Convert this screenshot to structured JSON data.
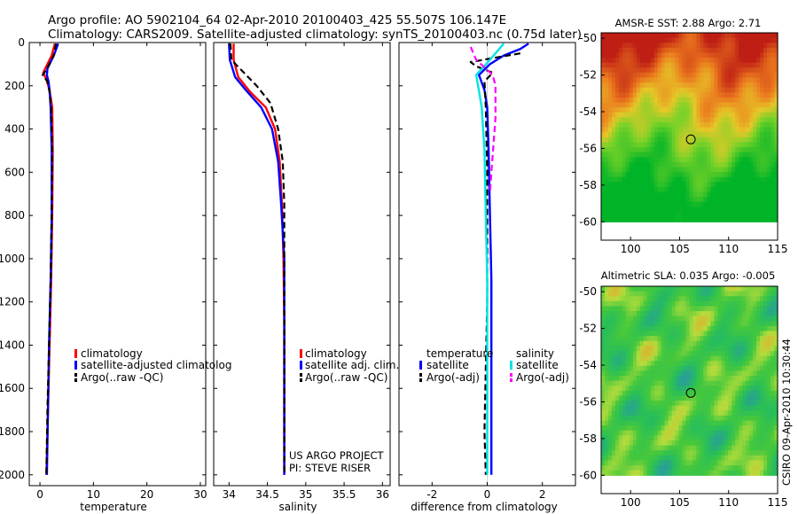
{
  "header": {
    "title_line1": "Argo profile: AO 5902104_64 02-Apr-2010 20100403_425 55.507S 106.147E",
    "title_line2": "Climatology: CARS2009. Satellite-adjusted climatology: synTS_20100403.nc (0.75d later)"
  },
  "credit": {
    "project": "US ARGO PROJECT",
    "pi": "PI: STEVE RISER",
    "stamp": "CSIRO 09-Apr-2010 10:30:44"
  },
  "colors": {
    "climatology": "#ff0000",
    "satellite": "#0000ff",
    "argo": "#000000",
    "sat_cyan": "#00e5e5",
    "argo_magenta": "#ff00ff"
  },
  "chart_data": [
    {
      "type": "line",
      "id": "temperature",
      "xlabel": "temperature",
      "ylabel": "",
      "xlim": [
        -2,
        31
      ],
      "ylim": [
        2050,
        0
      ],
      "xticks": [
        "0",
        "10",
        "20",
        "30"
      ],
      "xtick_values": [
        0,
        10,
        20,
        30
      ],
      "yticks": [
        "0",
        "200",
        "400",
        "600",
        "800",
        "1000",
        "1200",
        "1400",
        "1600",
        "1800",
        "2000"
      ],
      "ytick_values": [
        0,
        200,
        400,
        600,
        800,
        1000,
        1200,
        1400,
        1600,
        1800,
        2000
      ],
      "legend": [
        "climatology",
        "satellite-adjusted climatolog",
        "Argo(..raw -QC)"
      ],
      "series": [
        {
          "name": "climatology",
          "color": "#ff0000",
          "dash": false,
          "points": [
            [
              2.8,
              5
            ],
            [
              2.2,
              60
            ],
            [
              1.2,
              110
            ],
            [
              0.6,
              140
            ],
            [
              1.2,
              170
            ],
            [
              1.8,
              220
            ],
            [
              2.3,
              300
            ],
            [
              2.4,
              500
            ],
            [
              2.3,
              800
            ],
            [
              2.1,
              1100
            ],
            [
              1.8,
              1400
            ],
            [
              1.5,
              1700
            ],
            [
              1.2,
              2000
            ]
          ]
        },
        {
          "name": "satellite-adjusted climatolog",
          "color": "#0000ff",
          "dash": false,
          "points": [
            [
              3.4,
              5
            ],
            [
              2.6,
              60
            ],
            [
              1.4,
              120
            ],
            [
              1.3,
              150
            ],
            [
              1.6,
              180
            ],
            [
              1.8,
              220
            ],
            [
              2.0,
              300
            ],
            [
              2.2,
              500
            ],
            [
              2.2,
              800
            ],
            [
              2.0,
              1100
            ],
            [
              1.7,
              1400
            ],
            [
              1.5,
              1700
            ],
            [
              1.3,
              2000
            ]
          ]
        },
        {
          "name": "Argo(..raw -QC)",
          "color": "#000000",
          "dash": true,
          "points": [
            [
              3.0,
              5
            ],
            [
              2.6,
              60
            ],
            [
              1.1,
              130
            ],
            [
              0.5,
              150
            ],
            [
              1.4,
              180
            ],
            [
              1.8,
              230
            ],
            [
              2.1,
              300
            ],
            [
              2.3,
              500
            ],
            [
              2.2,
              800
            ],
            [
              2.0,
              1100
            ],
            [
              1.7,
              1400
            ],
            [
              1.4,
              1700
            ],
            [
              1.2,
              2000
            ]
          ]
        }
      ]
    },
    {
      "type": "line",
      "id": "salinity",
      "xlabel": "salinity",
      "ylabel": "",
      "xlim": [
        33.8,
        36.1
      ],
      "ylim": [
        2050,
        0
      ],
      "xticks": [
        "34",
        "34.5",
        "35",
        "35.5",
        "36"
      ],
      "xtick_values": [
        34,
        34.5,
        35,
        35.5,
        36
      ],
      "legend": [
        "climatology",
        "satellite adj. clim.",
        "Argo(..raw -QC)"
      ],
      "series": [
        {
          "name": "climatology",
          "color": "#ff0000",
          "dash": false,
          "points": [
            [
              34.06,
              5
            ],
            [
              34.06,
              80
            ],
            [
              34.12,
              160
            ],
            [
              34.28,
              230
            ],
            [
              34.48,
              300
            ],
            [
              34.6,
              400
            ],
            [
              34.66,
              550
            ],
            [
              34.69,
              750
            ],
            [
              34.71,
              1000
            ],
            [
              34.72,
              1300
            ],
            [
              34.72,
              1600
            ],
            [
              34.72,
              2000
            ]
          ]
        },
        {
          "name": "satellite adj. clim.",
          "color": "#0000ff",
          "dash": false,
          "points": [
            [
              34.0,
              5
            ],
            [
              34.01,
              80
            ],
            [
              34.08,
              160
            ],
            [
              34.22,
              220
            ],
            [
              34.42,
              300
            ],
            [
              34.56,
              400
            ],
            [
              34.64,
              550
            ],
            [
              34.68,
              750
            ],
            [
              34.72,
              1000
            ],
            [
              34.72,
              1300
            ],
            [
              34.72,
              1600
            ],
            [
              34.72,
              2000
            ]
          ]
        },
        {
          "name": "Argo(..raw -QC)",
          "color": "#000000",
          "dash": true,
          "points": [
            [
              34.02,
              5
            ],
            [
              34.03,
              80
            ],
            [
              34.14,
              120
            ],
            [
              34.36,
              200
            ],
            [
              34.54,
              280
            ],
            [
              34.64,
              400
            ],
            [
              34.7,
              550
            ],
            [
              34.72,
              750
            ],
            [
              34.72,
              1000
            ],
            [
              34.72,
              1300
            ],
            [
              34.72,
              1600
            ],
            [
              34.72,
              2000
            ]
          ]
        }
      ]
    },
    {
      "type": "line",
      "id": "difference",
      "xlabel": "difference from climatology",
      "ylabel": "",
      "xlim": [
        -3.2,
        3.2
      ],
      "ylim": [
        2050,
        0
      ],
      "xticks": [
        "-2",
        "0",
        "2"
      ],
      "xtick_values": [
        -2,
        0,
        2
      ],
      "legend_headers": [
        "temperature",
        "salinity"
      ],
      "legend_left": [
        "satellite",
        "Argo(-adj)"
      ],
      "legend_right": [
        "satellite",
        "Argo(-adj)"
      ],
      "series": [
        {
          "name": "temperature satellite",
          "color": "#0000ff",
          "dash": false,
          "points": [
            [
              1.5,
              5
            ],
            [
              1.2,
              30
            ],
            [
              0.6,
              60
            ],
            [
              0.1,
              100
            ],
            [
              -0.3,
              150
            ],
            [
              -0.1,
              220
            ],
            [
              0.0,
              300
            ],
            [
              0.05,
              500
            ],
            [
              0.1,
              800
            ],
            [
              0.15,
              1100
            ],
            [
              0.15,
              1400
            ],
            [
              0.15,
              1700
            ],
            [
              0.15,
              2000
            ]
          ]
        },
        {
          "name": "temperature Argo(-adj)",
          "color": "#000000",
          "dash": true,
          "points": [
            [
              1.2,
              50
            ],
            [
              0.3,
              70
            ],
            [
              -0.6,
              90
            ],
            [
              -0.4,
              110
            ],
            [
              0.2,
              140
            ],
            [
              -0.1,
              180
            ],
            [
              -0.05,
              300
            ],
            [
              0.0,
              600
            ],
            [
              0.0,
              900
            ],
            [
              0.0,
              1200
            ],
            [
              -0.05,
              1500
            ],
            [
              -0.1,
              1800
            ],
            [
              -0.05,
              2000
            ]
          ]
        },
        {
          "name": "salinity satellite",
          "color": "#00e5e5",
          "dash": false,
          "points": [
            [
              0.6,
              5
            ],
            [
              0.1,
              80
            ],
            [
              -0.4,
              150
            ],
            [
              -0.2,
              300
            ],
            [
              -0.1,
              500
            ],
            [
              -0.05,
              800
            ],
            [
              0.0,
              1100
            ],
            [
              0.0,
              1500
            ],
            [
              0.0,
              2000
            ]
          ]
        },
        {
          "name": "salinity Argo(-adj)",
          "color": "#ff00ff",
          "dash": true,
          "points": [
            [
              -0.6,
              20
            ],
            [
              -0.4,
              80
            ],
            [
              0.2,
              150
            ],
            [
              0.3,
              200
            ],
            [
              0.3,
              350
            ],
            [
              0.15,
              600
            ],
            [
              0.1,
              700
            ]
          ]
        }
      ]
    },
    {
      "type": "heatmap",
      "id": "sst",
      "title": "AMSR-E SST: 2.88 Argo: 2.71",
      "xlim": [
        97,
        115
      ],
      "ylim": [
        -61,
        -49.7
      ],
      "xticks": [
        "100",
        "105",
        "110",
        "115"
      ],
      "xtick_values": [
        100,
        105,
        110,
        115
      ],
      "yticks": [
        "-50",
        "-52",
        "-54",
        "-56",
        "-58",
        "-60"
      ],
      "ytick_values": [
        -50,
        -52,
        -54,
        -56,
        -58,
        -60
      ],
      "data_ylim": [
        -60,
        -49.7
      ],
      "marker": [
        106.147,
        -55.507
      ]
    },
    {
      "type": "heatmap",
      "id": "sla",
      "title": "Altimetric SLA: 0.035 Argo: -0.005",
      "xlim": [
        97,
        115
      ],
      "ylim": [
        -61,
        -49.7
      ],
      "xticks": [
        "100",
        "105",
        "110",
        "115"
      ],
      "xtick_values": [
        100,
        105,
        110,
        115
      ],
      "yticks": [
        "-50",
        "-52",
        "-54",
        "-56",
        "-58",
        "-60"
      ],
      "ytick_values": [
        -50,
        -52,
        -54,
        -56,
        -58,
        -60
      ],
      "data_ylim": [
        -60,
        -49.7
      ],
      "marker": [
        106.147,
        -55.507
      ]
    }
  ]
}
